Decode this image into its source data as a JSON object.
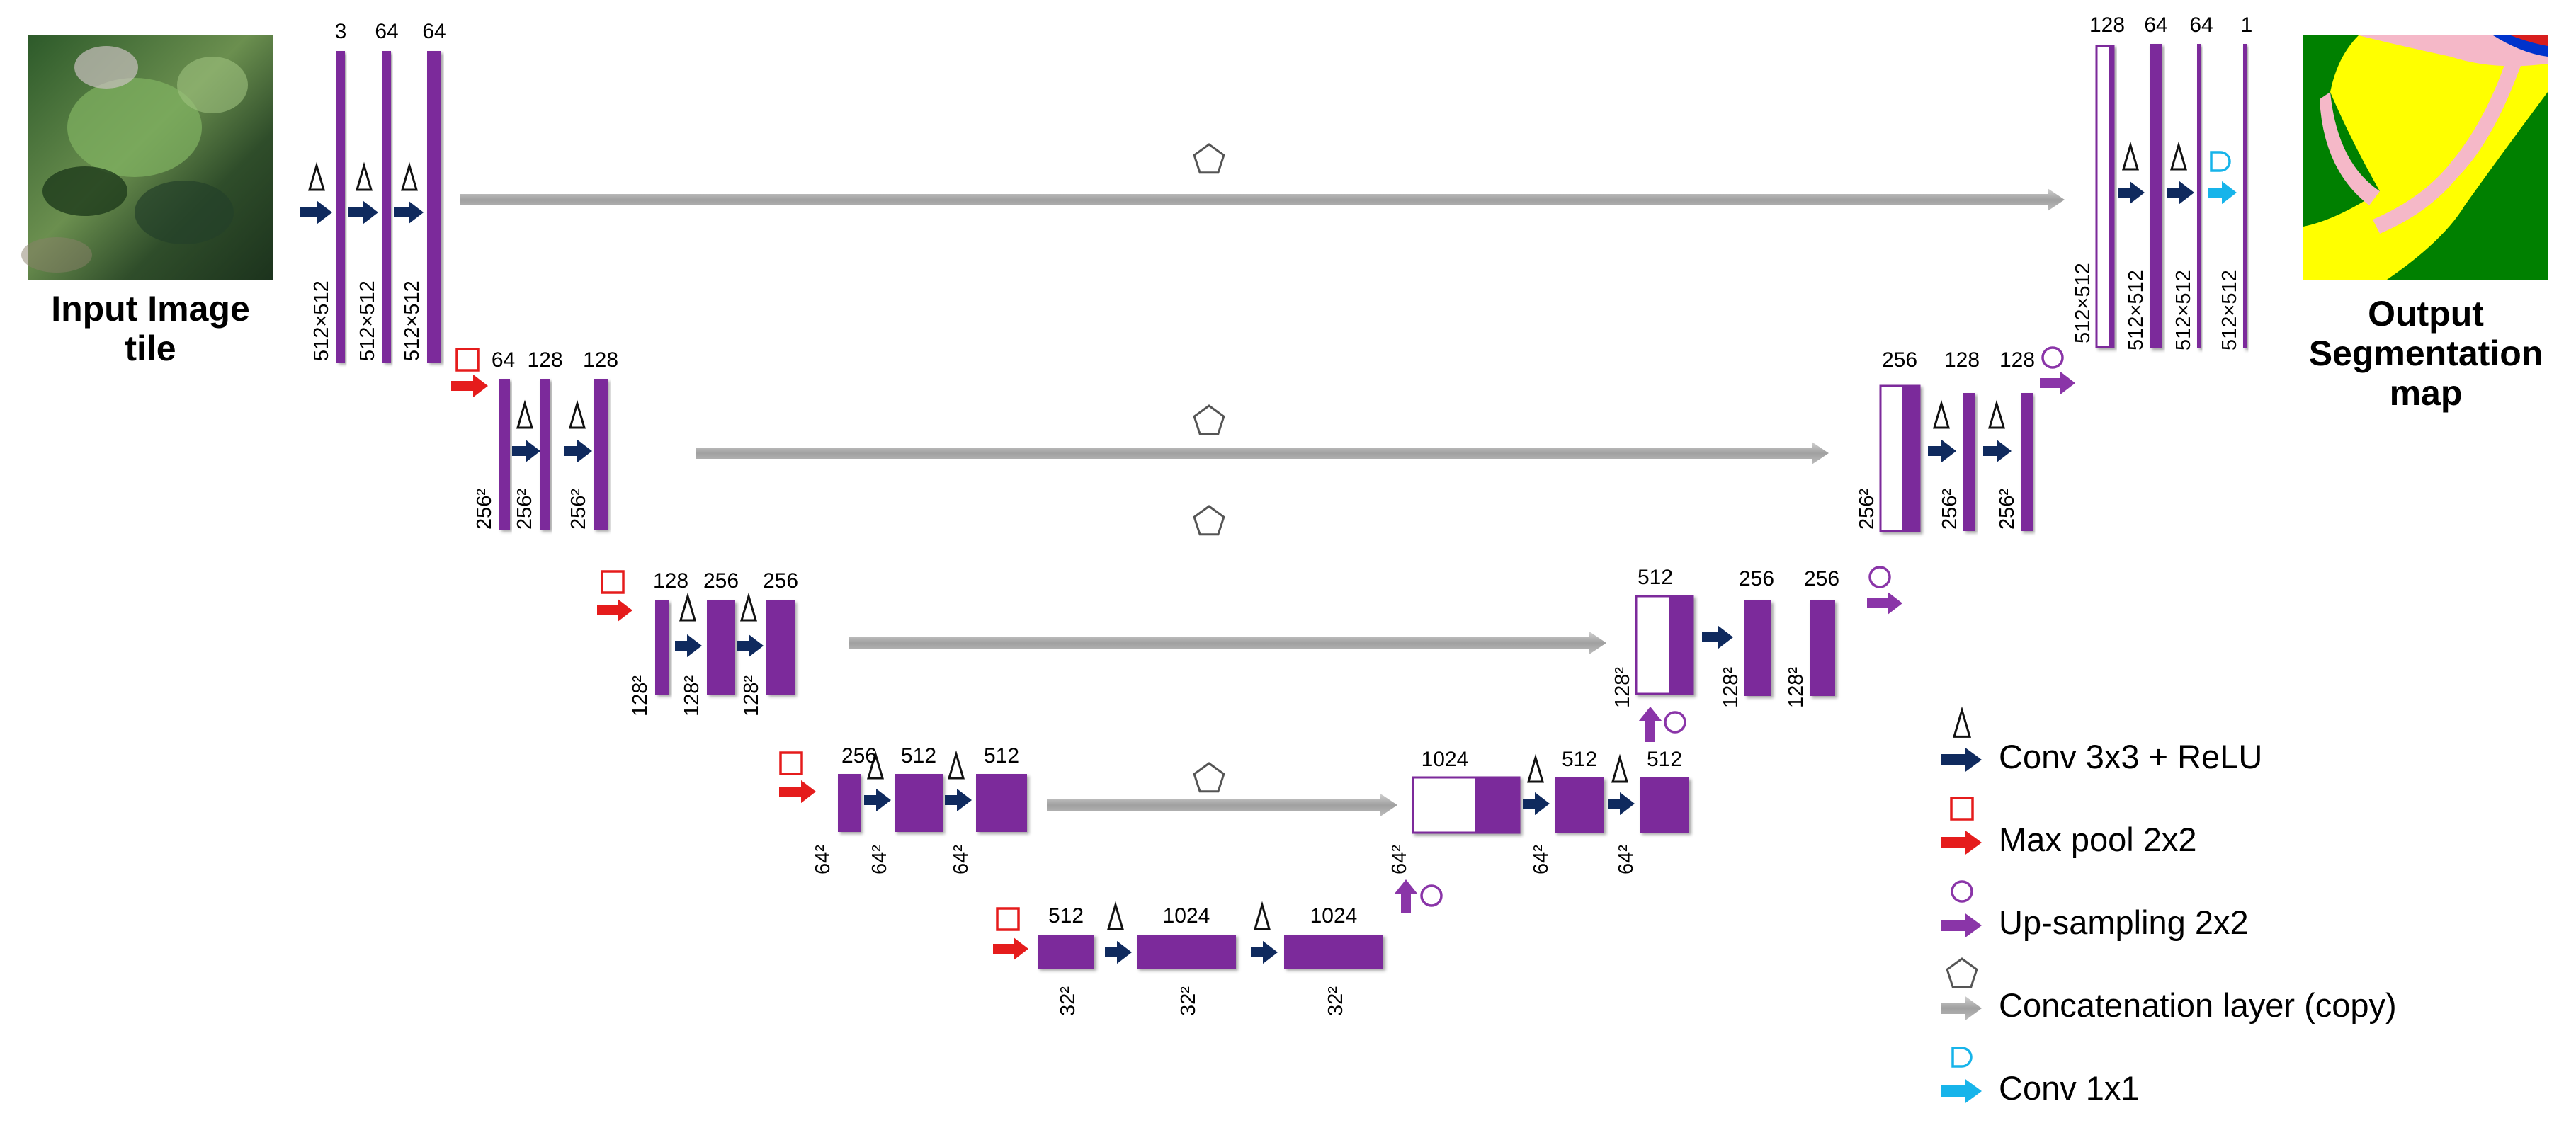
{
  "input_caption": "Input Image tile",
  "output_caption": "Output Segmentation map",
  "colors": {
    "block": "#7b2a9b",
    "conv_arrow": "#0f2a5e",
    "pool": "#e51c1c",
    "upsample": "#8a35a8",
    "concat": "#a8a8a8",
    "conv1x1": "#17b4ea",
    "ocean_map_green": "#008000",
    "map_yellow": "#ffff00",
    "map_pink": "#f5b8c8"
  },
  "levels": [
    {
      "level": 1,
      "side": "encoder",
      "channels": [
        "3",
        "64",
        "64"
      ],
      "size": "512×512"
    },
    {
      "level": 2,
      "side": "encoder",
      "channels": [
        "64",
        "128",
        "128"
      ],
      "size": "256²"
    },
    {
      "level": 3,
      "side": "encoder",
      "channels": [
        "128",
        "256",
        "256"
      ],
      "size": "128²"
    },
    {
      "level": 4,
      "side": "encoder",
      "channels": [
        "256",
        "512",
        "512"
      ],
      "size": "64²"
    },
    {
      "level": 5,
      "side": "bottleneck",
      "channels": [
        "512",
        "1024",
        "1024"
      ],
      "size": "32²"
    },
    {
      "level": 4,
      "side": "decoder",
      "channels": [
        "1024",
        "512",
        "512"
      ],
      "size": "64²"
    },
    {
      "level": 3,
      "side": "decoder",
      "channels": [
        "512",
        "256",
        "256"
      ],
      "size": "128²"
    },
    {
      "level": 2,
      "side": "decoder",
      "channels": [
        "256",
        "128",
        "128"
      ],
      "size": "256²"
    },
    {
      "level": 1,
      "side": "decoder",
      "channels": [
        "128",
        "64",
        "64",
        "1"
      ],
      "size": "512×512"
    }
  ],
  "legend": [
    {
      "icon": "triangle-outline-icon",
      "arrow": "navy-arrow-icon",
      "label": "Conv 3x3 + ReLU"
    },
    {
      "icon": "square-outline-icon",
      "arrow": "red-arrow-icon",
      "label": "Max pool 2x2"
    },
    {
      "icon": "circle-outline-icon",
      "arrow": "purple-arrow-icon",
      "label": "Up-sampling 2x2"
    },
    {
      "icon": "pentagon-outline-icon",
      "arrow": "gray-arrow-icon",
      "label": "Concatenation layer (copy)"
    },
    {
      "icon": "d-shape-outline-icon",
      "arrow": "cyan-arrow-icon",
      "label": "Conv 1x1"
    }
  ]
}
